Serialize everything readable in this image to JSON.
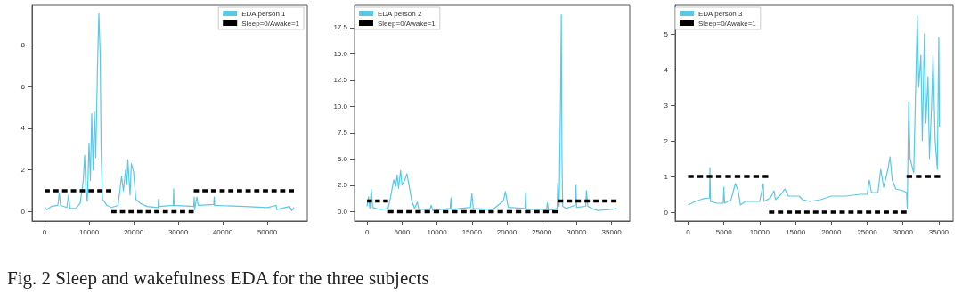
{
  "chart_data": [
    {
      "type": "line",
      "legend": "top right",
      "marker": "none",
      "grid": false,
      "xlim": [
        -2800,
        59000
      ],
      "ylim": [
        -0.45,
        9.9
      ],
      "xticks": [
        0,
        10000,
        20000,
        30000,
        40000,
        50000
      ],
      "yticks": [
        0,
        2,
        4,
        6,
        8
      ],
      "annotations": [
        "Fig. 2  Sleep and wakefulness EDA for the three subjects"
      ],
      "series": [
        {
          "name": "EDA person 1",
          "color": "#5bc8e6",
          "line_style": "solid",
          "x": [
            0,
            500,
            1500,
            3000,
            3300,
            3600,
            5000,
            5400,
            5700,
            7000,
            8000,
            8700,
            9000,
            9300,
            9600,
            10000,
            10300,
            10600,
            10900,
            11200,
            11500,
            11900,
            12200,
            12500,
            12700,
            13000,
            14000,
            15000,
            16500,
            17300,
            17700,
            18200,
            18500,
            18700,
            19200,
            19500,
            20000,
            20500,
            21500,
            23000,
            25500,
            25600,
            25700,
            28900,
            29000,
            29100,
            33500,
            33600,
            33700,
            34200,
            34500,
            38000,
            38100,
            38200,
            45000,
            50000,
            52000,
            52100,
            54000,
            55000,
            55500,
            56000
          ],
          "values": [
            0.2,
            0.1,
            0.25,
            0.3,
            0.9,
            0.3,
            0.2,
            0.8,
            0.15,
            0.15,
            0.4,
            1.5,
            2.7,
            1.0,
            0.5,
            3.3,
            1.5,
            4.7,
            2.0,
            4.8,
            2.6,
            7.0,
            9.5,
            7.5,
            3,
            0.6,
            0.3,
            0.2,
            0.3,
            1.7,
            1.0,
            2.0,
            1.3,
            2.5,
            0.8,
            2.3,
            1.9,
            0.6,
            0.4,
            0.25,
            0.2,
            0.6,
            0.25,
            0.3,
            1.1,
            0.3,
            0.25,
            0.7,
            0.1,
            0.7,
            0.3,
            0.35,
            0.7,
            0.3,
            0.25,
            0.2,
            0.3,
            0.1,
            0.2,
            0.25,
            0.05,
            0.2
          ]
        },
        {
          "name": "Sleep=0/Awake=1",
          "color": "#000000",
          "line_style": "dashed",
          "x": [
            0,
            15000
          ],
          "values": [
            1,
            1
          ]
        },
        {
          "color": "#000000",
          "line_style": "dashed",
          "x": [
            15000,
            33500
          ],
          "values": [
            0,
            0
          ]
        },
        {
          "color": "#000000",
          "line_style": "dashed",
          "x": [
            33500,
            56000
          ],
          "values": [
            1,
            1
          ]
        }
      ]
    },
    {
      "type": "line",
      "legend": "top left",
      "marker": "none",
      "grid": false,
      "xlim": [
        -1800,
        37600
      ],
      "ylim": [
        -0.9,
        19.6
      ],
      "xticks": [
        0,
        5000,
        10000,
        15000,
        20000,
        25000,
        30000,
        35000
      ],
      "yticks": [
        {
          "value": 0,
          "label": "0.0"
        },
        {
          "value": 2.5,
          "label": "2.5"
        },
        {
          "value": 5,
          "label": "5.0"
        },
        {
          "value": 7.5,
          "label": "7.5"
        },
        {
          "value": 10,
          "label": "10.0"
        },
        {
          "value": 12.5,
          "label": "12.5"
        },
        {
          "value": 15,
          "label": "15.0"
        },
        {
          "value": 17.5,
          "label": "17.5"
        }
      ],
      "series": [
        {
          "name": "EDA person 2",
          "color": "#5bc8e6",
          "line_style": "solid",
          "x": [
            0,
            200,
            400,
            600,
            800,
            1200,
            2000,
            3000,
            3400,
            3800,
            4100,
            4300,
            4500,
            4800,
            5000,
            5400,
            5700,
            6000,
            6400,
            6800,
            7200,
            7400,
            9000,
            9200,
            9400,
            11900,
            12000,
            12100,
            14800,
            15000,
            15200,
            18000,
            19500,
            19800,
            20200,
            22600,
            22700,
            22800,
            25700,
            25800,
            26000,
            27200,
            27300,
            27500,
            27700,
            27800,
            27900,
            28000,
            28500,
            29800,
            29900,
            30000,
            31300,
            31400,
            31600,
            32500,
            33000,
            35000,
            35700
          ],
          "values": [
            0.5,
            1.4,
            0.3,
            2.1,
            0.4,
            0.3,
            0.2,
            0.3,
            1.5,
            3.0,
            2.4,
            3.5,
            2.2,
            3.9,
            2.5,
            3.0,
            3.6,
            2.5,
            1.0,
            0.3,
            0.9,
            0.2,
            0.2,
            0.6,
            0.1,
            0.3,
            1.3,
            0.2,
            0.4,
            1.7,
            0.3,
            0.2,
            1.0,
            1.9,
            0.4,
            0.3,
            1.8,
            0.2,
            0.2,
            0.8,
            0.1,
            0.3,
            2.7,
            0.5,
            11,
            18.7,
            5,
            0.5,
            0.3,
            0.6,
            2.5,
            0.4,
            0.5,
            2.0,
            0.5,
            0.2,
            0.1,
            0.2,
            0.3
          ]
        },
        {
          "name": "Sleep=0/Awake=1",
          "color": "#000000",
          "line_style": "dashed",
          "x": [
            0,
            3000
          ],
          "values": [
            1,
            1
          ]
        },
        {
          "color": "#000000",
          "line_style": "dashed",
          "x": [
            3000,
            27300
          ],
          "values": [
            0,
            0
          ]
        },
        {
          "color": "#000000",
          "line_style": "dashed",
          "x": [
            27300,
            35700
          ],
          "values": [
            1,
            1
          ]
        }
      ]
    },
    {
      "type": "line",
      "legend": "top left",
      "marker": "none",
      "grid": false,
      "xlim": [
        -1800,
        37000
      ],
      "ylim": [
        -0.25,
        5.8
      ],
      "xticks": [
        0,
        5000,
        10000,
        15000,
        20000,
        25000,
        30000,
        35000
      ],
      "yticks": [
        0,
        1,
        2,
        3,
        4,
        5
      ],
      "series": [
        {
          "name": "EDA person 3",
          "color": "#5bc8e6",
          "line_style": "solid",
          "x": [
            0,
            1000,
            2000,
            3000,
            3050,
            3150,
            4000,
            4900,
            5000,
            5100,
            6000,
            6600,
            7000,
            7300,
            8000,
            10000,
            10500,
            10600,
            11500,
            12000,
            12200,
            13000,
            13500,
            14000,
            15500,
            16000,
            17000,
            18500,
            20000,
            22000,
            24000,
            25000,
            25300,
            25600,
            26500,
            26900,
            27300,
            27900,
            28200,
            28500,
            29000,
            30000,
            30500,
            30600,
            30800,
            31000,
            31500,
            31800,
            32000,
            32200,
            32500,
            32700,
            33000,
            33200,
            33500,
            33700,
            34000,
            34200,
            34500,
            34800,
            35000,
            35100
          ],
          "values": [
            0.2,
            0.3,
            0.37,
            0.4,
            1.25,
            0.3,
            0.25,
            0.25,
            0.7,
            0.25,
            0.35,
            0.8,
            0.6,
            0.2,
            0.3,
            0.3,
            0.8,
            0.3,
            0.4,
            0.6,
            0.35,
            0.5,
            0.65,
            0.45,
            0.45,
            0.35,
            0.3,
            0.35,
            0.45,
            0.45,
            0.5,
            0.5,
            0.9,
            0.55,
            0.55,
            1.2,
            0.7,
            1.2,
            1.55,
            0.9,
            0.65,
            0.6,
            0.55,
            0.1,
            3.1,
            1.5,
            1.1,
            3.7,
            5.5,
            3.5,
            4.4,
            2.0,
            5.0,
            2.5,
            3.8,
            1.5,
            3.0,
            4.4,
            2.0,
            1.2,
            4.9,
            2.4
          ]
        },
        {
          "name": "Sleep=0/Awake=1",
          "color": "#000000",
          "line_style": "dashed",
          "x": [
            0,
            11200
          ],
          "values": [
            1,
            1
          ]
        },
        {
          "color": "#000000",
          "line_style": "dashed",
          "x": [
            11300,
            30500
          ],
          "values": [
            0,
            0
          ]
        },
        {
          "color": "#000000",
          "line_style": "dashed",
          "x": [
            30500,
            35200
          ],
          "values": [
            1,
            1
          ]
        }
      ]
    }
  ]
}
